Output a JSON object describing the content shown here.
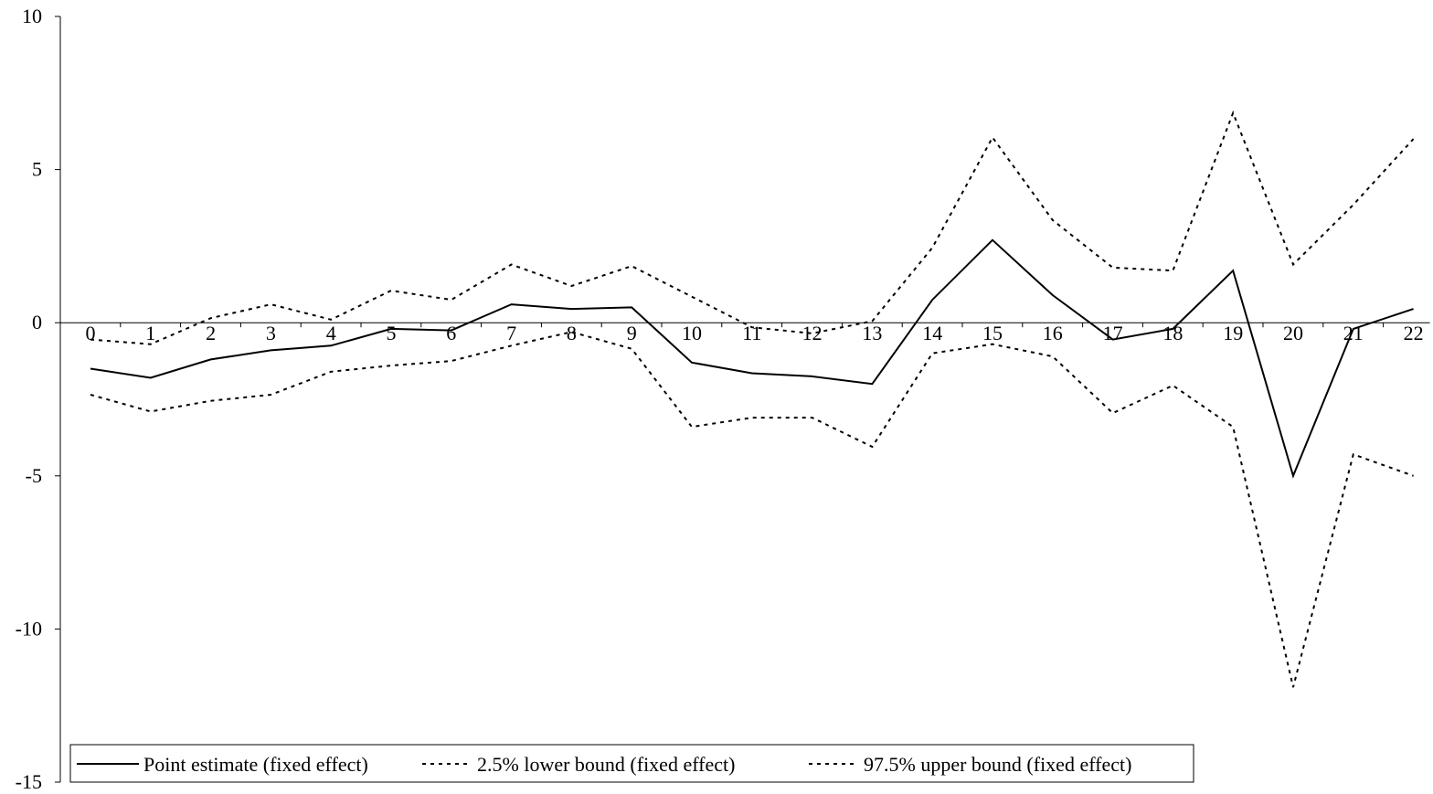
{
  "chart_data": {
    "type": "line",
    "title": "",
    "xlabel": "",
    "ylabel": "",
    "ylim": [
      -15,
      10
    ],
    "y_ticks": [
      10,
      5,
      0,
      -5,
      -10,
      -15
    ],
    "x": [
      0,
      1,
      2,
      3,
      4,
      5,
      6,
      7,
      8,
      9,
      10,
      11,
      12,
      13,
      14,
      15,
      16,
      17,
      18,
      19,
      20,
      21,
      22
    ],
    "grid": false,
    "legend_position": "bottom-left",
    "series": [
      {
        "name": "Point estimate (fixed effect)",
        "style": "solid",
        "color": "#000000",
        "values": [
          -1.5,
          -1.8,
          -1.2,
          -0.9,
          -0.75,
          -0.2,
          -0.25,
          0.6,
          0.45,
          0.5,
          -1.3,
          -1.65,
          -1.75,
          -2.0,
          0.75,
          2.7,
          0.9,
          -0.55,
          -0.2,
          1.7,
          -5.0,
          -0.2,
          0.45
        ]
      },
      {
        "name": "2.5% lower bound (fixed effect)",
        "style": "dotted",
        "color": "#000000",
        "values": [
          -2.35,
          -2.9,
          -2.55,
          -2.35,
          -1.6,
          -1.4,
          -1.25,
          -0.75,
          -0.3,
          -0.85,
          -3.4,
          -3.1,
          -3.1,
          -4.05,
          -1.0,
          -0.7,
          -1.1,
          -2.95,
          -2.05,
          -3.4,
          -11.9,
          -4.3,
          -5.0
        ]
      },
      {
        "name": "97.5% upper bound (fixed effect)",
        "style": "dotted",
        "color": "#000000",
        "values": [
          -0.55,
          -0.7,
          0.15,
          0.6,
          0.1,
          1.05,
          0.75,
          1.9,
          1.2,
          1.85,
          0.85,
          -0.15,
          -0.35,
          0.05,
          2.45,
          6.05,
          3.35,
          1.8,
          1.7,
          6.85,
          1.9,
          3.85,
          6.0
        ]
      }
    ]
  }
}
